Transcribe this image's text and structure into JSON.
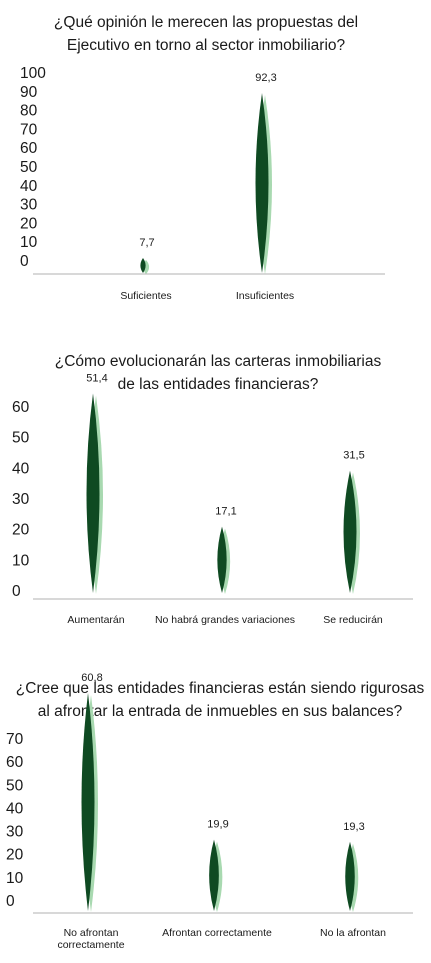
{
  "colors": {
    "bar": "#0f4a22",
    "shadow": "#a8d9b0",
    "axis": "#b0b0b0",
    "text": "#1a1a1a"
  },
  "chart_data": [
    {
      "type": "bar",
      "title": "¿Qué opinión le merecen las propuestas del Ejecutivo en torno al sector inmobiliario?",
      "title_lines": [
        "¿Qué opinión le merecen las propuestas del",
        "Ejecutivo en torno al sector inmobiliario?"
      ],
      "categories": [
        "Suficientes",
        "Insuficientes"
      ],
      "category_lines": [
        [
          "Suficientes"
        ],
        [
          "Insuficientes"
        ]
      ],
      "values": [
        7.7,
        92.3
      ],
      "value_labels": [
        "7,7",
        "92,3"
      ],
      "y_ticks": [
        "100",
        "90",
        "80",
        "70",
        "60",
        "50",
        "40",
        "30",
        "20",
        "10",
        "0"
      ],
      "ylim": [
        0,
        100
      ],
      "xlabel": "",
      "ylabel": "",
      "grid": false,
      "legend": "none"
    },
    {
      "type": "bar",
      "title": "¿Cómo evolucionarán las carteras inmobiliarias de las entidades financieras?",
      "title_lines": [
        "¿Cómo evolucionarán las carteras inmobiliarias",
        "de las entidades financieras?"
      ],
      "categories": [
        "Aumentarán",
        "No habrá grandes variaciones",
        "Se reducirán"
      ],
      "category_lines": [
        [
          "Aumentarán"
        ],
        [
          "No habrá grandes variaciones"
        ],
        [
          "Se reducirán"
        ]
      ],
      "values": [
        51.4,
        17.1,
        31.5
      ],
      "value_labels": [
        "51,4",
        "17,1",
        "31,5"
      ],
      "y_ticks": [
        "60",
        "50",
        "40",
        "30",
        "20",
        "10",
        "0"
      ],
      "ylim": [
        0,
        60
      ],
      "xlabel": "",
      "ylabel": "",
      "grid": false,
      "legend": "none"
    },
    {
      "type": "bar",
      "title": "¿Cree que las entidades financieras están siendo rigurosas al afrontar la entrada de inmuebles en sus balances?",
      "title_lines": [
        "¿Cree que las entidades financieras están siendo rigurosas",
        "al afrontar la entrada de inmuebles en sus balances?"
      ],
      "categories": [
        "No afrontan correctamente",
        "Afrontan correctamente",
        "No la afrontan"
      ],
      "category_lines": [
        [
          "No afrontan",
          "correctamente"
        ],
        [
          "Afrontan correctamente"
        ],
        [
          "No la afrontan"
        ]
      ],
      "values": [
        60.8,
        19.9,
        19.3
      ],
      "value_labels": [
        "60,8",
        "19,9",
        "19,3"
      ],
      "y_ticks": [
        "70",
        "60",
        "50",
        "40",
        "30",
        "20",
        "10",
        "0"
      ],
      "ylim": [
        0,
        70
      ],
      "xlabel": "",
      "ylabel": "",
      "grid": false,
      "legend": "none"
    }
  ]
}
